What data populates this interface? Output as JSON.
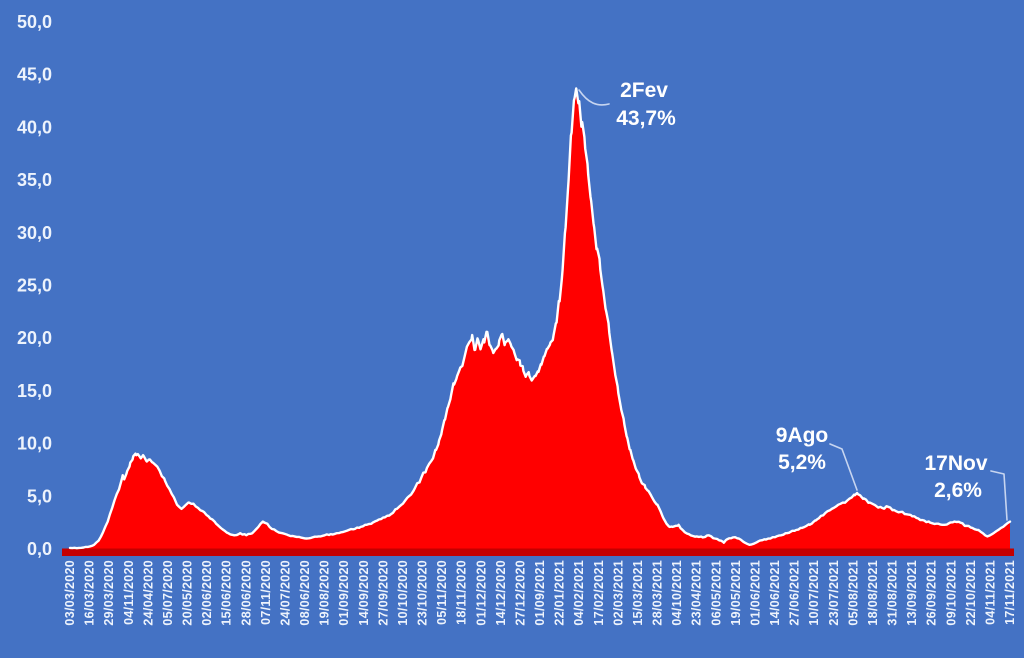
{
  "colors": {
    "background": "#4472C4",
    "area_fill": "#FF0000",
    "area_outline": "#FFFFFF",
    "axis_band": "#C40000",
    "tick_text": "#EDF3FC",
    "annotation_text": "#FFFFFF",
    "leader_line": "#C7D5F0"
  },
  "chart_data": {
    "type": "area",
    "title": "",
    "xlabel": "",
    "ylabel": "",
    "grid": false,
    "legend": false,
    "ylim": [
      0,
      50
    ],
    "y_tick_values": [
      0,
      5,
      10,
      15,
      20,
      25,
      30,
      35,
      40,
      45,
      50
    ],
    "y_tick_labels": [
      "0,0",
      "5,0",
      "10,0",
      "15,0",
      "20,0",
      "25,0",
      "30,0",
      "35,0",
      "40,0",
      "45,0",
      "50,0"
    ],
    "x_tick_labels": [
      "03/03/2020",
      "16/03/2020",
      "29/03/2020",
      "04/11/2020",
      "24/04/2020",
      "05/07/2020",
      "20/05/2020",
      "02/06/2020",
      "15/06/2020",
      "28/06/2020",
      "07/11/2020",
      "24/07/2020",
      "08/06/2020",
      "19/08/2020",
      "01/09/2020",
      "14/09/2020",
      "27/09/2020",
      "10/10/2020",
      "23/10/2020",
      "05/11/2020",
      "18/11/2020",
      "01/12/2020",
      "14/12/2020",
      "27/12/2020",
      "01/09/2021",
      "22/01/2021",
      "04/02/2021",
      "17/02/2021",
      "02/03/2021",
      "15/03/2021",
      "28/03/2021",
      "04/10/2021",
      "23/04/2021",
      "06/05/2021",
      "19/05/2021",
      "01/06/2021",
      "14/06/2021",
      "27/06/2021",
      "10/07/2021",
      "23/07/2021",
      "05/08/2021",
      "18/08/2021",
      "31/08/2021",
      "13/09/2021",
      "26/09/2021",
      "09/10/2021",
      "22/10/2021",
      "04/11/2021",
      "17/11/2021"
    ],
    "x_tick_day_step": 13,
    "series": [
      {
        "points": [
          [
            0,
            0.1
          ],
          [
            6,
            0.1
          ],
          [
            12,
            0.2
          ],
          [
            16,
            0.4
          ],
          [
            19,
            0.8
          ],
          [
            22,
            1.6
          ],
          [
            25,
            2.6
          ],
          [
            28,
            3.9
          ],
          [
            31,
            5.2
          ],
          [
            33,
            5.9
          ],
          [
            35,
            7.0
          ],
          [
            36,
            6.6
          ],
          [
            38,
            7.4
          ],
          [
            40,
            8.2
          ],
          [
            42,
            8.8
          ],
          [
            44,
            8.9
          ],
          [
            45,
            9.0
          ],
          [
            47,
            8.6
          ],
          [
            49,
            8.8
          ],
          [
            51,
            8.3
          ],
          [
            53,
            8.5
          ],
          [
            55,
            8.2
          ],
          [
            58,
            7.8
          ],
          [
            61,
            6.9
          ],
          [
            63,
            6.5
          ],
          [
            66,
            5.7
          ],
          [
            69,
            4.9
          ],
          [
            71,
            4.2
          ],
          [
            74,
            3.8
          ],
          [
            77,
            4.2
          ],
          [
            79,
            4.4
          ],
          [
            82,
            4.3
          ],
          [
            85,
            3.9
          ],
          [
            89,
            3.5
          ],
          [
            93,
            2.9
          ],
          [
            97,
            2.4
          ],
          [
            101,
            1.9
          ],
          [
            105,
            1.5
          ],
          [
            109,
            1.3
          ],
          [
            113,
            1.5
          ],
          [
            117,
            1.3
          ],
          [
            121,
            1.5
          ],
          [
            125,
            2.1
          ],
          [
            128,
            2.6
          ],
          [
            131,
            2.4
          ],
          [
            134,
            1.9
          ],
          [
            137,
            1.7
          ],
          [
            141,
            1.5
          ],
          [
            145,
            1.3
          ],
          [
            149,
            1.2
          ],
          [
            153,
            1.1
          ],
          [
            157,
            1.0
          ],
          [
            161,
            1.1
          ],
          [
            165,
            1.2
          ],
          [
            169,
            1.3
          ],
          [
            173,
            1.4
          ],
          [
            177,
            1.5
          ],
          [
            181,
            1.6
          ],
          [
            185,
            1.8
          ],
          [
            189,
            1.9
          ],
          [
            193,
            2.1
          ],
          [
            197,
            2.3
          ],
          [
            201,
            2.5
          ],
          [
            205,
            2.8
          ],
          [
            209,
            3.0
          ],
          [
            213,
            3.3
          ],
          [
            217,
            3.8
          ],
          [
            221,
            4.3
          ],
          [
            225,
            5.0
          ],
          [
            229,
            5.8
          ],
          [
            233,
            6.7
          ],
          [
            237,
            7.7
          ],
          [
            241,
            8.6
          ],
          [
            243,
            9.4
          ],
          [
            245,
            10.3
          ],
          [
            247,
            11.3
          ],
          [
            249,
            12.3
          ],
          [
            251,
            13.5
          ],
          [
            253,
            14.6
          ],
          [
            255,
            15.6
          ],
          [
            257,
            16.4
          ],
          [
            259,
            17.2
          ],
          [
            262,
            18.3
          ],
          [
            265,
            19.6
          ],
          [
            267,
            20.3
          ],
          [
            269,
            18.9
          ],
          [
            271,
            19.8
          ],
          [
            273,
            19.2
          ],
          [
            275,
            19.6
          ],
          [
            277,
            20.6
          ],
          [
            279,
            19.3
          ],
          [
            281,
            18.6
          ],
          [
            283,
            19.0
          ],
          [
            285,
            19.8
          ],
          [
            287,
            20.4
          ],
          [
            289,
            19.6
          ],
          [
            291,
            19.9
          ],
          [
            293,
            19.2
          ],
          [
            295,
            18.6
          ],
          [
            297,
            18.0
          ],
          [
            299,
            17.4
          ],
          [
            301,
            16.9
          ],
          [
            303,
            16.5
          ],
          [
            305,
            16.4
          ],
          [
            307,
            16.1
          ],
          [
            309,
            16.4
          ],
          [
            311,
            16.8
          ],
          [
            313,
            17.5
          ],
          [
            315,
            18.3
          ],
          [
            317,
            19.0
          ],
          [
            319,
            19.6
          ],
          [
            321,
            20.3
          ],
          [
            323,
            21.5
          ],
          [
            325,
            23.5
          ],
          [
            327,
            26.5
          ],
          [
            329,
            30.5
          ],
          [
            331,
            35.0
          ],
          [
            333,
            39.5
          ],
          [
            335,
            42.8
          ],
          [
            336,
            43.7
          ],
          [
            338,
            42.5
          ],
          [
            340,
            40.5
          ],
          [
            342,
            38.0
          ],
          [
            344,
            35.5
          ],
          [
            346,
            33.0
          ],
          [
            348,
            30.5
          ],
          [
            350,
            28.5
          ],
          [
            352,
            26.5
          ],
          [
            354,
            24.5
          ],
          [
            356,
            22.5
          ],
          [
            358,
            20.5
          ],
          [
            360,
            18.5
          ],
          [
            362,
            16.5
          ],
          [
            364,
            14.8
          ],
          [
            366,
            13.2
          ],
          [
            368,
            11.8
          ],
          [
            370,
            10.5
          ],
          [
            372,
            9.4
          ],
          [
            374,
            8.4
          ],
          [
            376,
            7.5
          ],
          [
            378,
            6.8
          ],
          [
            380,
            6.2
          ],
          [
            382,
            5.8
          ],
          [
            384,
            5.5
          ],
          [
            386,
            5.0
          ],
          [
            388,
            4.5
          ],
          [
            390,
            4.2
          ],
          [
            392,
            3.6
          ],
          [
            394,
            2.9
          ],
          [
            396,
            2.4
          ],
          [
            398,
            2.1
          ],
          [
            400,
            2.1
          ],
          [
            402,
            2.2
          ],
          [
            404,
            2.3
          ],
          [
            406,
            1.9
          ],
          [
            408,
            1.6
          ],
          [
            412,
            1.3
          ],
          [
            416,
            1.2
          ],
          [
            420,
            1.1
          ],
          [
            424,
            1.3
          ],
          [
            428,
            1.0
          ],
          [
            432,
            0.8
          ],
          [
            434,
            0.6
          ],
          [
            436,
            0.9
          ],
          [
            440,
            1.1
          ],
          [
            444,
            1.0
          ],
          [
            448,
            0.6
          ],
          [
            451,
            0.4
          ],
          [
            454,
            0.5
          ],
          [
            458,
            0.8
          ],
          [
            462,
            0.9
          ],
          [
            465,
            1.0
          ],
          [
            469,
            1.2
          ],
          [
            472,
            1.3
          ],
          [
            476,
            1.5
          ],
          [
            478,
            1.6
          ],
          [
            482,
            1.8
          ],
          [
            486,
            2.0
          ],
          [
            489,
            2.2
          ],
          [
            491,
            2.3
          ],
          [
            493,
            2.5
          ],
          [
            495,
            2.7
          ],
          [
            497,
            2.9
          ],
          [
            500,
            3.2
          ],
          [
            503,
            3.6
          ],
          [
            507,
            3.9
          ],
          [
            510,
            4.2
          ],
          [
            513,
            4.4
          ],
          [
            516,
            4.6
          ],
          [
            519,
            4.9
          ],
          [
            521,
            5.1
          ],
          [
            523,
            5.2
          ],
          [
            525,
            5.0
          ],
          [
            527,
            4.8
          ],
          [
            531,
            4.4
          ],
          [
            535,
            4.1
          ],
          [
            539,
            3.9
          ],
          [
            543,
            4.0
          ],
          [
            547,
            3.7
          ],
          [
            551,
            3.5
          ],
          [
            555,
            3.3
          ],
          [
            559,
            3.1
          ],
          [
            563,
            2.9
          ],
          [
            567,
            2.7
          ],
          [
            571,
            2.5
          ],
          [
            575,
            2.4
          ],
          [
            579,
            2.3
          ],
          [
            583,
            2.4
          ],
          [
            587,
            2.6
          ],
          [
            591,
            2.5
          ],
          [
            595,
            2.2
          ],
          [
            599,
            2.0
          ],
          [
            603,
            1.8
          ],
          [
            606,
            1.5
          ],
          [
            609,
            1.2
          ],
          [
            612,
            1.4
          ],
          [
            615,
            1.7
          ],
          [
            618,
            2.0
          ],
          [
            621,
            2.3
          ],
          [
            624,
            2.6
          ]
        ]
      }
    ],
    "annotations": [
      {
        "label": "2Fev",
        "value": "43,7%",
        "day": 336,
        "pct": 43.7
      },
      {
        "label": "9Ago",
        "value": "5,2%",
        "day": 523,
        "pct": 5.2
      },
      {
        "label": "17Nov",
        "value": "2,6%",
        "day": 624,
        "pct": 2.6
      }
    ]
  }
}
